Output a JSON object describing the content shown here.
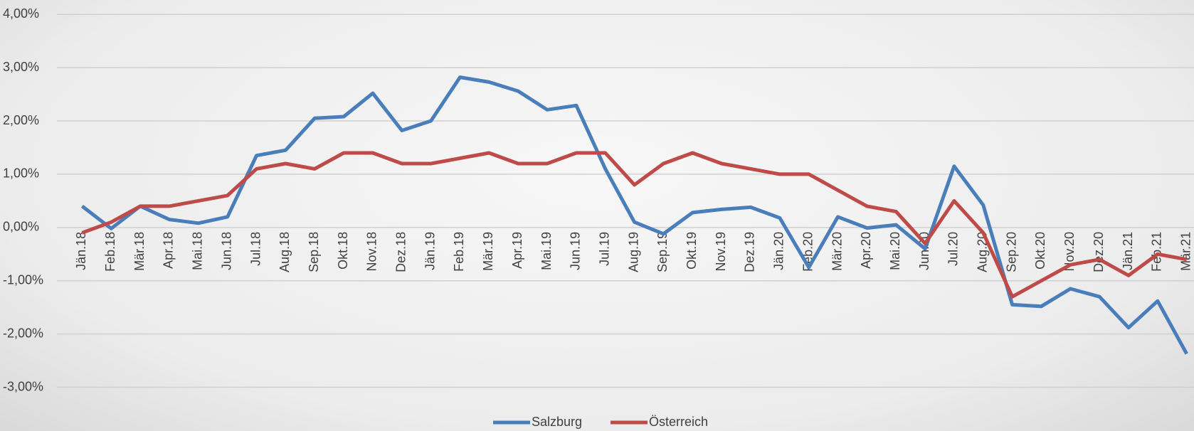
{
  "chart_data": {
    "type": "line",
    "categories": [
      "Jän.18",
      "Feb.18",
      "Mär.18",
      "Apr.18",
      "Mai.18",
      "Jun.18",
      "Jul.18",
      "Aug.18",
      "Sep.18",
      "Okt.18",
      "Nov.18",
      "Dez.18",
      "Jän.19",
      "Feb.19",
      "Mär.19",
      "Apr.19",
      "Mai.19",
      "Jun.19",
      "Jul.19",
      "Aug.19",
      "Sep.19",
      "Okt.19",
      "Nov.19",
      "Dez.19",
      "Jän.20",
      "Feb.20",
      "Mär.20",
      "Apr.20",
      "Mai.20",
      "Jun.20",
      "Jul.20",
      "Aug.20",
      "Sep.20",
      "Okt.20",
      "Nov.20",
      "Dez.20",
      "Jän.21",
      "Feb.21",
      "Mär.21"
    ],
    "series": [
      {
        "name": "Salzburg",
        "color": "#4a7ebb",
        "values": [
          0.4,
          -0.02,
          0.4,
          0.15,
          0.08,
          0.2,
          1.35,
          1.45,
          2.05,
          2.08,
          2.52,
          1.82,
          2.0,
          2.82,
          2.73,
          2.56,
          2.21,
          2.29,
          1.1,
          0.1,
          -0.12,
          0.28,
          0.34,
          0.38,
          0.18,
          -0.75,
          0.2,
          -0.01,
          0.05,
          -0.4,
          1.15,
          0.42,
          -1.45,
          -1.48,
          -1.15,
          -1.3,
          -1.88,
          -1.38,
          -2.37
        ]
      },
      {
        "name": "Österreich",
        "color": "#be4b48",
        "values": [
          -0.1,
          0.1,
          0.4,
          0.4,
          0.5,
          0.6,
          1.1,
          1.2,
          1.1,
          1.4,
          1.4,
          1.2,
          1.2,
          1.3,
          1.4,
          1.2,
          1.2,
          1.4,
          1.4,
          0.8,
          1.2,
          1.4,
          1.2,
          1.1,
          1.0,
          1.0,
          0.7,
          0.4,
          0.3,
          -0.3,
          0.5,
          -0.1,
          -1.3,
          -1.0,
          -0.7,
          -0.6,
          -0.9,
          -0.5,
          -0.6
        ]
      }
    ],
    "ylim": [
      -3.5,
      4.27
    ],
    "yticks": [
      {
        "value": 4,
        "label": "4,00%"
      },
      {
        "value": 3,
        "label": "3,00%"
      },
      {
        "value": 2,
        "label": "2,00%"
      },
      {
        "value": 1,
        "label": "1,00%"
      },
      {
        "value": 0,
        "label": "0,00%"
      },
      {
        "value": -1,
        "label": "-1,00%"
      },
      {
        "value": -2,
        "label": "-2,00%"
      },
      {
        "value": -3,
        "label": "-3,00%"
      }
    ],
    "grid": true,
    "legend": "bottom"
  }
}
